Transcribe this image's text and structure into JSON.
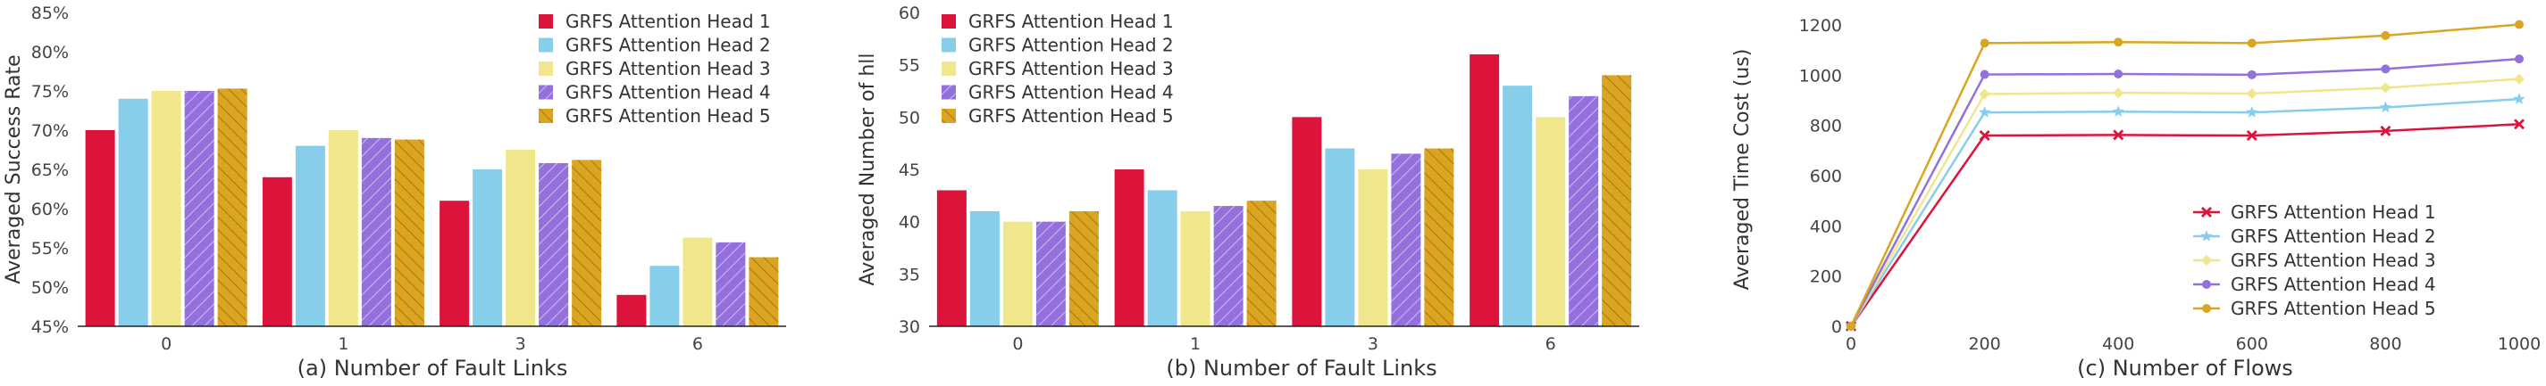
{
  "chart_data": [
    {
      "type": "bar",
      "caption": "(a) Number of Fault Links",
      "ylabel": "Averaged Success Rate",
      "categories": [
        "0",
        "1",
        "3",
        "6"
      ],
      "ylim": [
        45,
        85
      ],
      "yticks": [
        45,
        50,
        55,
        60,
        65,
        70,
        75,
        80,
        85
      ],
      "ytick_labels": [
        "45%",
        "50%",
        "55%",
        "60%",
        "65%",
        "70%",
        "75%",
        "80%",
        "85%"
      ],
      "legend_position": "top-right",
      "series": [
        {
          "name": "GRFS Attention Head 1",
          "values": [
            70,
            64,
            61,
            49
          ]
        },
        {
          "name": "GRFS Attention Head 2",
          "values": [
            74,
            68,
            65,
            52.7
          ]
        },
        {
          "name": "GRFS Attention Head 3",
          "values": [
            75,
            70,
            67.5,
            56.3
          ]
        },
        {
          "name": "GRFS Attention Head 4",
          "values": [
            75,
            69,
            65.8,
            55.7
          ]
        },
        {
          "name": "GRFS Attention Head 5",
          "values": [
            75.3,
            68.8,
            66.2,
            53.8
          ]
        }
      ]
    },
    {
      "type": "bar",
      "caption": "(b) Number of Fault Links",
      "ylabel": "Averaged Number of hll",
      "categories": [
        "0",
        "1",
        "3",
        "6"
      ],
      "ylim": [
        30,
        60
      ],
      "yticks": [
        30,
        35,
        40,
        45,
        50,
        55,
        60
      ],
      "ytick_labels": [
        "30",
        "35",
        "40",
        "45",
        "50",
        "55",
        "60"
      ],
      "legend_position": "top-left",
      "series": [
        {
          "name": "GRFS Attention Head 1",
          "values": [
            43,
            45,
            50,
            56
          ]
        },
        {
          "name": "GRFS Attention Head 2",
          "values": [
            41,
            43,
            47,
            53
          ]
        },
        {
          "name": "GRFS Attention Head 3",
          "values": [
            40,
            41,
            45,
            50
          ]
        },
        {
          "name": "GRFS Attention Head 4",
          "values": [
            40,
            41.5,
            46.5,
            52
          ]
        },
        {
          "name": "GRFS Attention Head 5",
          "values": [
            41,
            42,
            47,
            54
          ]
        }
      ]
    },
    {
      "type": "line",
      "caption": "(c) Number of Flows",
      "ylabel": "Averaged Time Cost (us)",
      "x": [
        0,
        200,
        400,
        600,
        800,
        1000
      ],
      "xlim": [
        0,
        1000
      ],
      "xticks": [
        0,
        200,
        400,
        600,
        800,
        1000
      ],
      "xtick_labels": [
        "0",
        "200",
        "400",
        "600",
        "800",
        "1000"
      ],
      "ylim": [
        0,
        1250
      ],
      "yticks": [
        0,
        200,
        400,
        600,
        800,
        1000,
        1200
      ],
      "ytick_labels": [
        "0",
        "200",
        "400",
        "600",
        "800",
        "1000",
        "1200"
      ],
      "legend_position": "bottom-right",
      "series": [
        {
          "name": "GRFS Attention Head 1",
          "values": [
            0,
            760,
            762,
            760,
            778,
            805
          ],
          "marker": "x"
        },
        {
          "name": "GRFS Attention Head 2",
          "values": [
            0,
            852,
            855,
            852,
            872,
            905
          ],
          "marker": "star"
        },
        {
          "name": "GRFS Attention Head 3",
          "values": [
            0,
            925,
            930,
            927,
            950,
            985
          ],
          "marker": "diamond"
        },
        {
          "name": "GRFS Attention Head 4",
          "values": [
            0,
            1003,
            1005,
            1002,
            1025,
            1065
          ],
          "marker": "circle"
        },
        {
          "name": "GRFS Attention Head 5",
          "values": [
            0,
            1128,
            1132,
            1128,
            1158,
            1202
          ],
          "marker": "circle"
        }
      ]
    }
  ],
  "colors": {
    "head1": "#dc143c",
    "head2": "#87ceeb",
    "head3": "#f0e68c",
    "head4": "#9370db",
    "head5": "#daa520",
    "axis": "#222222"
  }
}
